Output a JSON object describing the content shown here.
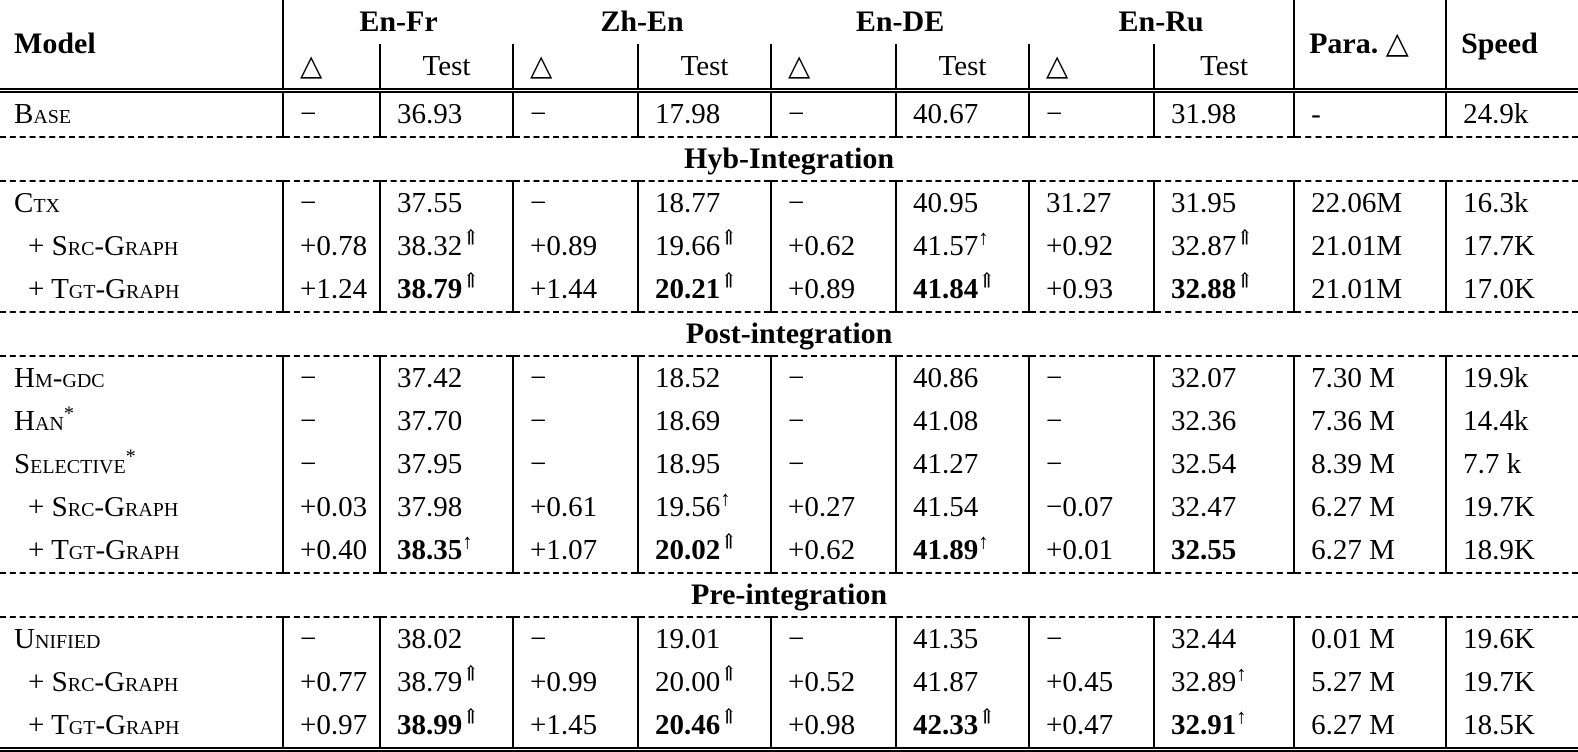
{
  "table": {
    "model_label": "Model",
    "groups": [
      "En-Fr",
      "Zh-En",
      "En-DE",
      "En-Ru"
    ],
    "delta": "△",
    "test": "Test",
    "para_label": "Para. △",
    "speed_label": "Speed",
    "column_keys": [
      "delta-en-fr",
      "test-en-fr",
      "delta-zh-en",
      "test-zh-en",
      "delta-en-de",
      "test-en-de",
      "delta-en-ru",
      "test-en-ru",
      "para",
      "speed"
    ],
    "sections": [
      {
        "header": null,
        "rows": [
          {
            "model": {
              "text": "Base"
            },
            "cells": [
              "−",
              "36.93",
              "−",
              "17.98",
              "−",
              "40.67",
              "−",
              "31.98",
              "-",
              "24.9k"
            ]
          }
        ]
      },
      {
        "header": "Hyb-Integration",
        "rows": [
          {
            "model": {
              "text": "Ctx"
            },
            "cells": [
              "−",
              "37.55",
              "−",
              "18.77",
              "−",
              "40.95",
              "31.27",
              "31.95",
              "22.06M",
              "16.3k"
            ]
          },
          {
            "model": {
              "text": "+ Src-Graph",
              "indent": true
            },
            "cells": [
              "+0.78",
              {
                "v": "38.32",
                "a": "⇑"
              },
              "+0.89",
              {
                "v": "19.66",
                "a": "⇑"
              },
              "+0.62",
              {
                "v": "41.57",
                "a": "↑"
              },
              "+0.92",
              {
                "v": "32.87",
                "a": "⇑"
              },
              "21.01M",
              "17.7K"
            ]
          },
          {
            "model": {
              "text": "+ Tgt-Graph",
              "indent": true
            },
            "cells": [
              "+1.24",
              {
                "v": "38.79",
                "a": "⇑",
                "b": true
              },
              "+1.44",
              {
                "v": "20.21",
                "a": "⇑",
                "b": true
              },
              "+0.89",
              {
                "v": "41.84",
                "a": "⇑",
                "b": true
              },
              "+0.93",
              {
                "v": "32.88",
                "a": "⇑",
                "b": true
              },
              "21.01M",
              "17.0K"
            ]
          }
        ]
      },
      {
        "header": "Post-integration",
        "rows": [
          {
            "model": {
              "text": "Hm-gdc"
            },
            "cells": [
              "−",
              "37.42",
              "−",
              "18.52",
              "−",
              "40.86",
              "−",
              "32.07",
              "7.30 M",
              "19.9k"
            ]
          },
          {
            "model": {
              "text": "Han",
              "sup": "*"
            },
            "cells": [
              "−",
              "37.70",
              "−",
              "18.69",
              "−",
              "41.08",
              "−",
              "32.36",
              "7.36 M",
              "14.4k"
            ]
          },
          {
            "model": {
              "text": "Selective",
              "sup": "*"
            },
            "cells": [
              "−",
              "37.95",
              "−",
              "18.95",
              "−",
              "41.27",
              "−",
              "32.54",
              "8.39 M",
              "7.7 k"
            ]
          },
          {
            "model": {
              "text": "+ Src-Graph",
              "indent": true
            },
            "cells": [
              "+0.03",
              "37.98",
              "+0.61",
              {
                "v": "19.56",
                "a": "↑"
              },
              "+0.27",
              "41.54",
              "−0.07",
              "32.47",
              "6.27 M",
              "19.7K"
            ]
          },
          {
            "model": {
              "text": "+ Tgt-Graph",
              "indent": true
            },
            "cells": [
              "+0.40",
              {
                "v": "38.35",
                "a": "↑",
                "b": true
              },
              "+1.07",
              {
                "v": "20.02",
                "a": "⇑",
                "b": true
              },
              "+0.62",
              {
                "v": "41.89",
                "a": "↑",
                "b": true
              },
              "+0.01",
              {
                "v": "32.55",
                "b": true
              },
              "6.27 M",
              "18.9K"
            ]
          }
        ]
      },
      {
        "header": "Pre-integration",
        "rows": [
          {
            "model": {
              "text": "Unified"
            },
            "cells": [
              "−",
              "38.02",
              "−",
              "19.01",
              "−",
              "41.35",
              "−",
              "32.44",
              "0.01 M",
              "19.6K"
            ]
          },
          {
            "model": {
              "text": "+ Src-Graph",
              "indent": true
            },
            "cells": [
              "+0.77",
              {
                "v": "38.79",
                "a": "⇑"
              },
              "+0.99",
              {
                "v": "20.00",
                "a": "⇑"
              },
              "+0.52",
              "41.87",
              "+0.45",
              {
                "v": "32.89",
                "a": "↑"
              },
              "5.27 M",
              "19.7K"
            ]
          },
          {
            "model": {
              "text": "+ Tgt-Graph",
              "indent": true
            },
            "cells": [
              "+0.97",
              {
                "v": "38.99",
                "a": "⇑",
                "b": true
              },
              "+1.45",
              {
                "v": "20.46",
                "a": "⇑",
                "b": true
              },
              "+0.98",
              {
                "v": "42.33",
                "a": "⇑",
                "b": true
              },
              "+0.47",
              {
                "v": "32.91",
                "a": "↑",
                "b": true
              },
              "6.27 M",
              "18.5K"
            ]
          }
        ]
      }
    ]
  }
}
